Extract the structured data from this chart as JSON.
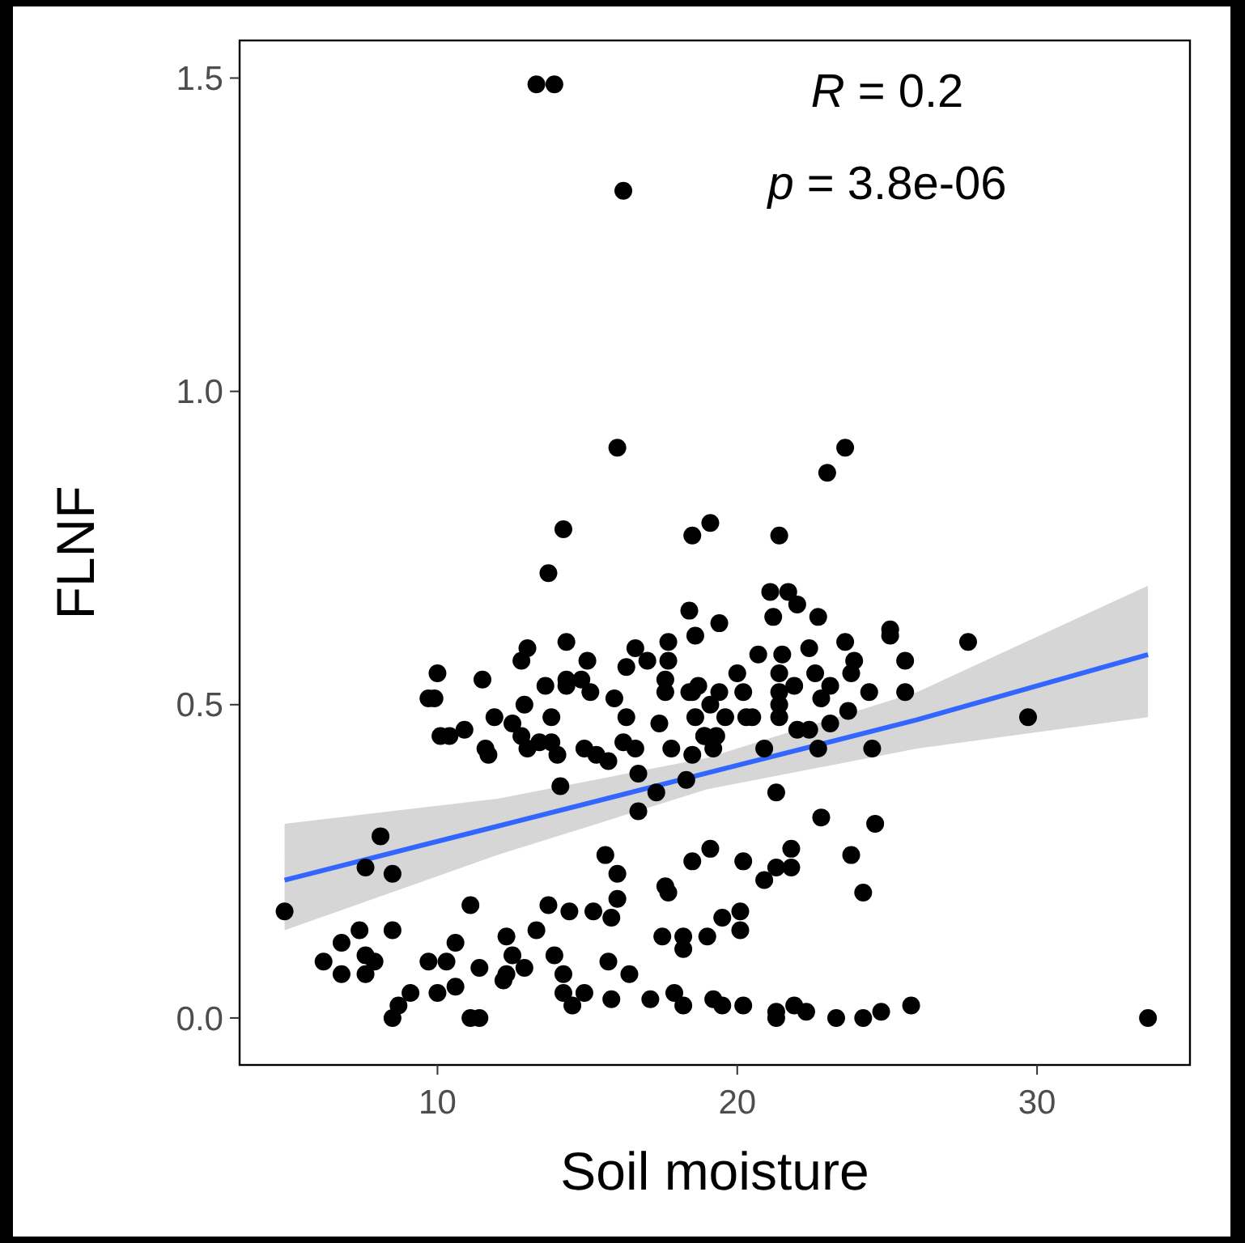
{
  "chart_data": {
    "type": "scatter",
    "xlabel": "Soil moisture",
    "ylabel": "FLNF",
    "xlim": [
      3.4,
      35.1
    ],
    "ylim": [
      -0.075,
      1.56
    ],
    "xticks": [
      10,
      20,
      30
    ],
    "yticks": [
      {
        "value": 0,
        "label": "0.0"
      },
      {
        "value": 0.5,
        "label": "0.5"
      },
      {
        "value": 1,
        "label": "1.0"
      },
      {
        "value": 1.5,
        "label": "1.5"
      }
    ],
    "grid": false,
    "annotations": [
      "R = 0.2",
      "p = 3.8e-06"
    ],
    "series": [
      {
        "marker": "circle",
        "color": "#000000",
        "x": [
          13.3,
          13.9,
          16.2,
          16.0,
          23.6,
          23.0,
          19.1,
          18.5,
          14.2,
          21.4,
          13.7,
          18.4,
          19.4,
          18.6,
          17.7,
          16.6,
          17.0,
          17.7,
          16.3,
          15.0,
          14.3,
          13.0,
          12.8,
          10.0,
          11.5,
          13.6,
          14.3,
          14.8,
          15.1,
          14.3,
          12.9,
          13.8,
          11.9,
          12.5,
          12.8,
          13.4,
          13.8,
          14.0,
          13.0,
          11.6,
          11.7,
          9.7,
          9.9,
          10.1,
          10.4,
          10.9,
          14.9,
          15.3,
          15.7,
          15.9,
          16.3,
          16.2,
          16.6,
          17.4,
          17.8,
          17.6,
          17.6,
          18.4,
          18.7,
          19.1,
          18.6,
          18.9,
          19.2,
          18.5,
          14.1,
          16.7,
          17.3,
          18.3,
          16.7,
          8.1,
          7.6,
          8.5,
          4.9,
          15.6,
          16.0,
          16.0,
          15.8,
          15.2,
          14.4,
          13.7,
          11.1,
          17.6,
          17.7,
          18.5,
          19.1,
          19.5,
          19.0,
          18.2,
          18.2,
          17.5,
          16.4,
          15.7,
          17.9,
          18.2,
          17.1,
          15.8,
          14.9,
          14.5,
          14.2,
          14.2,
          13.9,
          13.3,
          12.3,
          12.5,
          12.9,
          12.3,
          12.2,
          11.4,
          10.6,
          10.3,
          9.7,
          10.0,
          10.6,
          9.1,
          8.7,
          8.5,
          11.1,
          11.4,
          8.5,
          7.4,
          6.8,
          6.2,
          6.8,
          7.6,
          7.9,
          7.6,
          21.1,
          21.7,
          22.0,
          21.2,
          22.7,
          22.4,
          23.6,
          25.1,
          25.1,
          27.7,
          20.7,
          21.5,
          23.9,
          25.6,
          23.8,
          22.6,
          21.4,
          20.0,
          23.1,
          21.9,
          21.4,
          20.2,
          19.4,
          18.5,
          24.4,
          25.6,
          22.8,
          21.4,
          19.6,
          20.3,
          20.5,
          21.4,
          23.7,
          23.1,
          22.0,
          22.4,
          18.9,
          19.3,
          20.9,
          22.7,
          24.5,
          29.7,
          33.7,
          21.3,
          22.8,
          24.6,
          20.2,
          21.8,
          21.3,
          21.8,
          20.9,
          23.8,
          24.2,
          20.1,
          20.1,
          19.2,
          19.5,
          20.2,
          21.3,
          21.3,
          21.9,
          22.3,
          23.3,
          24.2,
          24.8,
          25.8
        ],
        "values": [
          1.49,
          1.49,
          1.32,
          0.91,
          0.91,
          0.87,
          0.79,
          0.77,
          0.78,
          0.77,
          0.71,
          0.65,
          0.63,
          0.61,
          0.6,
          0.59,
          0.57,
          0.57,
          0.56,
          0.57,
          0.6,
          0.59,
          0.57,
          0.55,
          0.54,
          0.53,
          0.54,
          0.54,
          0.52,
          0.53,
          0.5,
          0.48,
          0.48,
          0.47,
          0.45,
          0.44,
          0.44,
          0.42,
          0.43,
          0.43,
          0.42,
          0.51,
          0.51,
          0.45,
          0.45,
          0.46,
          0.43,
          0.42,
          0.41,
          0.51,
          0.48,
          0.44,
          0.43,
          0.47,
          0.43,
          0.52,
          0.54,
          0.52,
          0.53,
          0.5,
          0.48,
          0.45,
          0.43,
          0.42,
          0.37,
          0.39,
          0.36,
          0.38,
          0.33,
          0.29,
          0.24,
          0.23,
          0.17,
          0.26,
          0.23,
          0.19,
          0.16,
          0.17,
          0.17,
          0.18,
          0.18,
          0.21,
          0.2,
          0.25,
          0.27,
          0.16,
          0.13,
          0.13,
          0.11,
          0.13,
          0.07,
          0.09,
          0.04,
          0.02,
          0.03,
          0.03,
          0.04,
          0.02,
          0.04,
          0.07,
          0.1,
          0.14,
          0.13,
          0.1,
          0.08,
          0.07,
          0.06,
          0.08,
          0.12,
          0.09,
          0.09,
          0.04,
          0.05,
          0.04,
          0.02,
          0.0,
          0.0,
          0.0,
          0.14,
          0.14,
          0.12,
          0.09,
          0.07,
          0.1,
          0.09,
          0.07,
          0.68,
          0.68,
          0.66,
          0.64,
          0.64,
          0.59,
          0.6,
          0.62,
          0.61,
          0.6,
          0.58,
          0.58,
          0.57,
          0.57,
          0.55,
          0.55,
          0.55,
          0.55,
          0.53,
          0.53,
          0.52,
          0.52,
          0.52,
          0.52,
          0.52,
          0.52,
          0.51,
          0.5,
          0.48,
          0.48,
          0.48,
          0.48,
          0.49,
          0.47,
          0.46,
          0.46,
          0.45,
          0.45,
          0.43,
          0.43,
          0.43,
          0.48,
          0.0,
          0.36,
          0.32,
          0.31,
          0.25,
          0.27,
          0.24,
          0.24,
          0.22,
          0.26,
          0.2,
          0.17,
          0.14,
          0.03,
          0.02,
          0.02,
          0.01,
          0.0,
          0.02,
          0.01,
          0.0,
          0.0,
          0.01,
          0.02
        ]
      },
      {
        "type": "line",
        "color": "#3366ff",
        "x": [
          4.9,
          12,
          19,
          26,
          33.7
        ],
        "values": [
          0.22,
          0.306,
          0.391,
          0.476,
          0.58
        ],
        "lower": [
          0.14,
          0.26,
          0.365,
          0.43,
          0.48
        ],
        "upper": [
          0.31,
          0.35,
          0.415,
          0.52,
          0.69
        ]
      }
    ]
  }
}
